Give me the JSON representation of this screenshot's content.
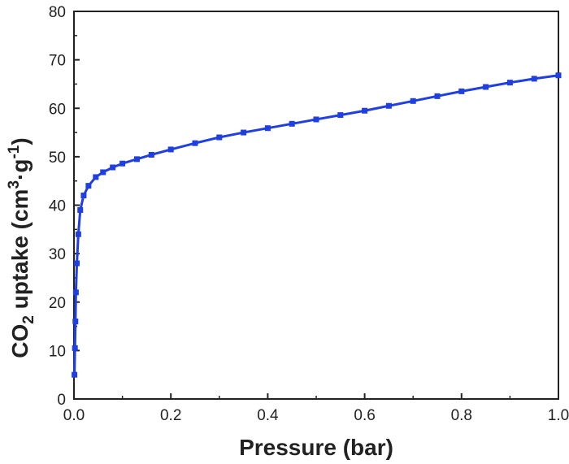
{
  "chart_data": {
    "type": "line",
    "xlabel": "Pressure (bar)",
    "ylabel": {
      "base": "CO",
      "base_sub": "2",
      "text": " uptake (cm",
      "unit_sup": "3",
      "mid": "·g",
      "unit_sup2": "-1",
      "end": ")"
    },
    "xlim": [
      0.0,
      1.0
    ],
    "ylim": [
      0,
      80
    ],
    "x_ticks": [
      "0.0",
      "0.2",
      "0.4",
      "0.6",
      "0.8",
      "1.0"
    ],
    "x_tick_values": [
      0.0,
      0.2,
      0.4,
      0.6,
      0.8,
      1.0
    ],
    "y_ticks": [
      "0",
      "10",
      "20",
      "30",
      "40",
      "50",
      "60",
      "70",
      "80"
    ],
    "y_tick_values": [
      0,
      10,
      20,
      30,
      40,
      50,
      60,
      70,
      80
    ],
    "grid": false,
    "series": [
      {
        "color": "#1f3fe0",
        "marker": "square",
        "x": [
          0.001,
          0.002,
          0.003,
          0.004,
          0.006,
          0.009,
          0.013,
          0.02,
          0.03,
          0.045,
          0.06,
          0.08,
          0.1,
          0.13,
          0.16,
          0.2,
          0.25,
          0.3,
          0.35,
          0.4,
          0.45,
          0.5,
          0.55,
          0.6,
          0.65,
          0.7,
          0.75,
          0.8,
          0.85,
          0.9,
          0.95,
          1.0
        ],
        "y": [
          5.0,
          10.5,
          16.0,
          22.0,
          28.0,
          34.0,
          39.0,
          42.0,
          44.0,
          45.8,
          46.8,
          47.8,
          48.6,
          49.5,
          50.4,
          51.5,
          52.8,
          54.0,
          55.0,
          55.9,
          56.8,
          57.7,
          58.6,
          59.5,
          60.5,
          61.5,
          62.5,
          63.5,
          64.4,
          65.3,
          66.1,
          66.8
        ]
      }
    ]
  }
}
